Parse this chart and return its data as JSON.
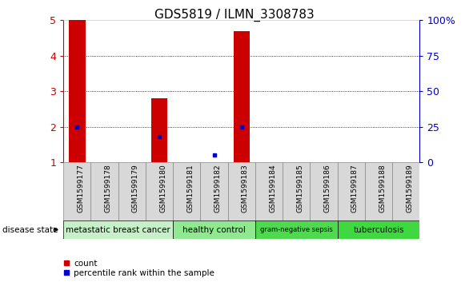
{
  "title": "GDS5819 / ILMN_3308783",
  "samples": [
    "GSM1599177",
    "GSM1599178",
    "GSM1599179",
    "GSM1599180",
    "GSM1599181",
    "GSM1599182",
    "GSM1599183",
    "GSM1599184",
    "GSM1599185",
    "GSM1599186",
    "GSM1599187",
    "GSM1599188",
    "GSM1599189"
  ],
  "count_values": [
    5.0,
    1.0,
    1.0,
    2.8,
    1.0,
    1.0,
    4.7,
    1.0,
    1.0,
    1.0,
    1.0,
    1.0,
    1.0
  ],
  "percentile_values": [
    25.0,
    null,
    null,
    18.0,
    null,
    5.0,
    25.0,
    null,
    null,
    null,
    null,
    null,
    null
  ],
  "ylim_left": [
    1,
    5
  ],
  "ylim_right": [
    0,
    100
  ],
  "yticks_left": [
    1,
    2,
    3,
    4,
    5
  ],
  "yticks_right": [
    0,
    25,
    50,
    75,
    100
  ],
  "ytick_labels_left": [
    "1",
    "2",
    "3",
    "4",
    "5"
  ],
  "ytick_labels_right": [
    "0",
    "25",
    "50",
    "75",
    "100%"
  ],
  "groups": [
    {
      "label": "metastatic breast cancer",
      "start": 0,
      "end": 4,
      "color": "#c8f0c8"
    },
    {
      "label": "healthy control",
      "start": 4,
      "end": 7,
      "color": "#90e890"
    },
    {
      "label": "gram-negative sepsis",
      "start": 7,
      "end": 10,
      "color": "#50d850"
    },
    {
      "label": "tuberculosis",
      "start": 10,
      "end": 13,
      "color": "#40d840"
    }
  ],
  "bar_color": "#cc0000",
  "percentile_color": "#0000cc",
  "grid_color": "#000000",
  "bg_color": "#ffffff",
  "left_axis_color": "#cc0000",
  "right_axis_color": "#0000cc",
  "legend_count_label": "count",
  "legend_percentile_label": "percentile rank within the sample",
  "disease_state_label": "disease state",
  "sample_cell_color": "#d8d8d8",
  "sample_cell_border": "#888888",
  "title_fontsize": 11,
  "tick_fontsize": 7.5,
  "group_fontsize": 7.5
}
